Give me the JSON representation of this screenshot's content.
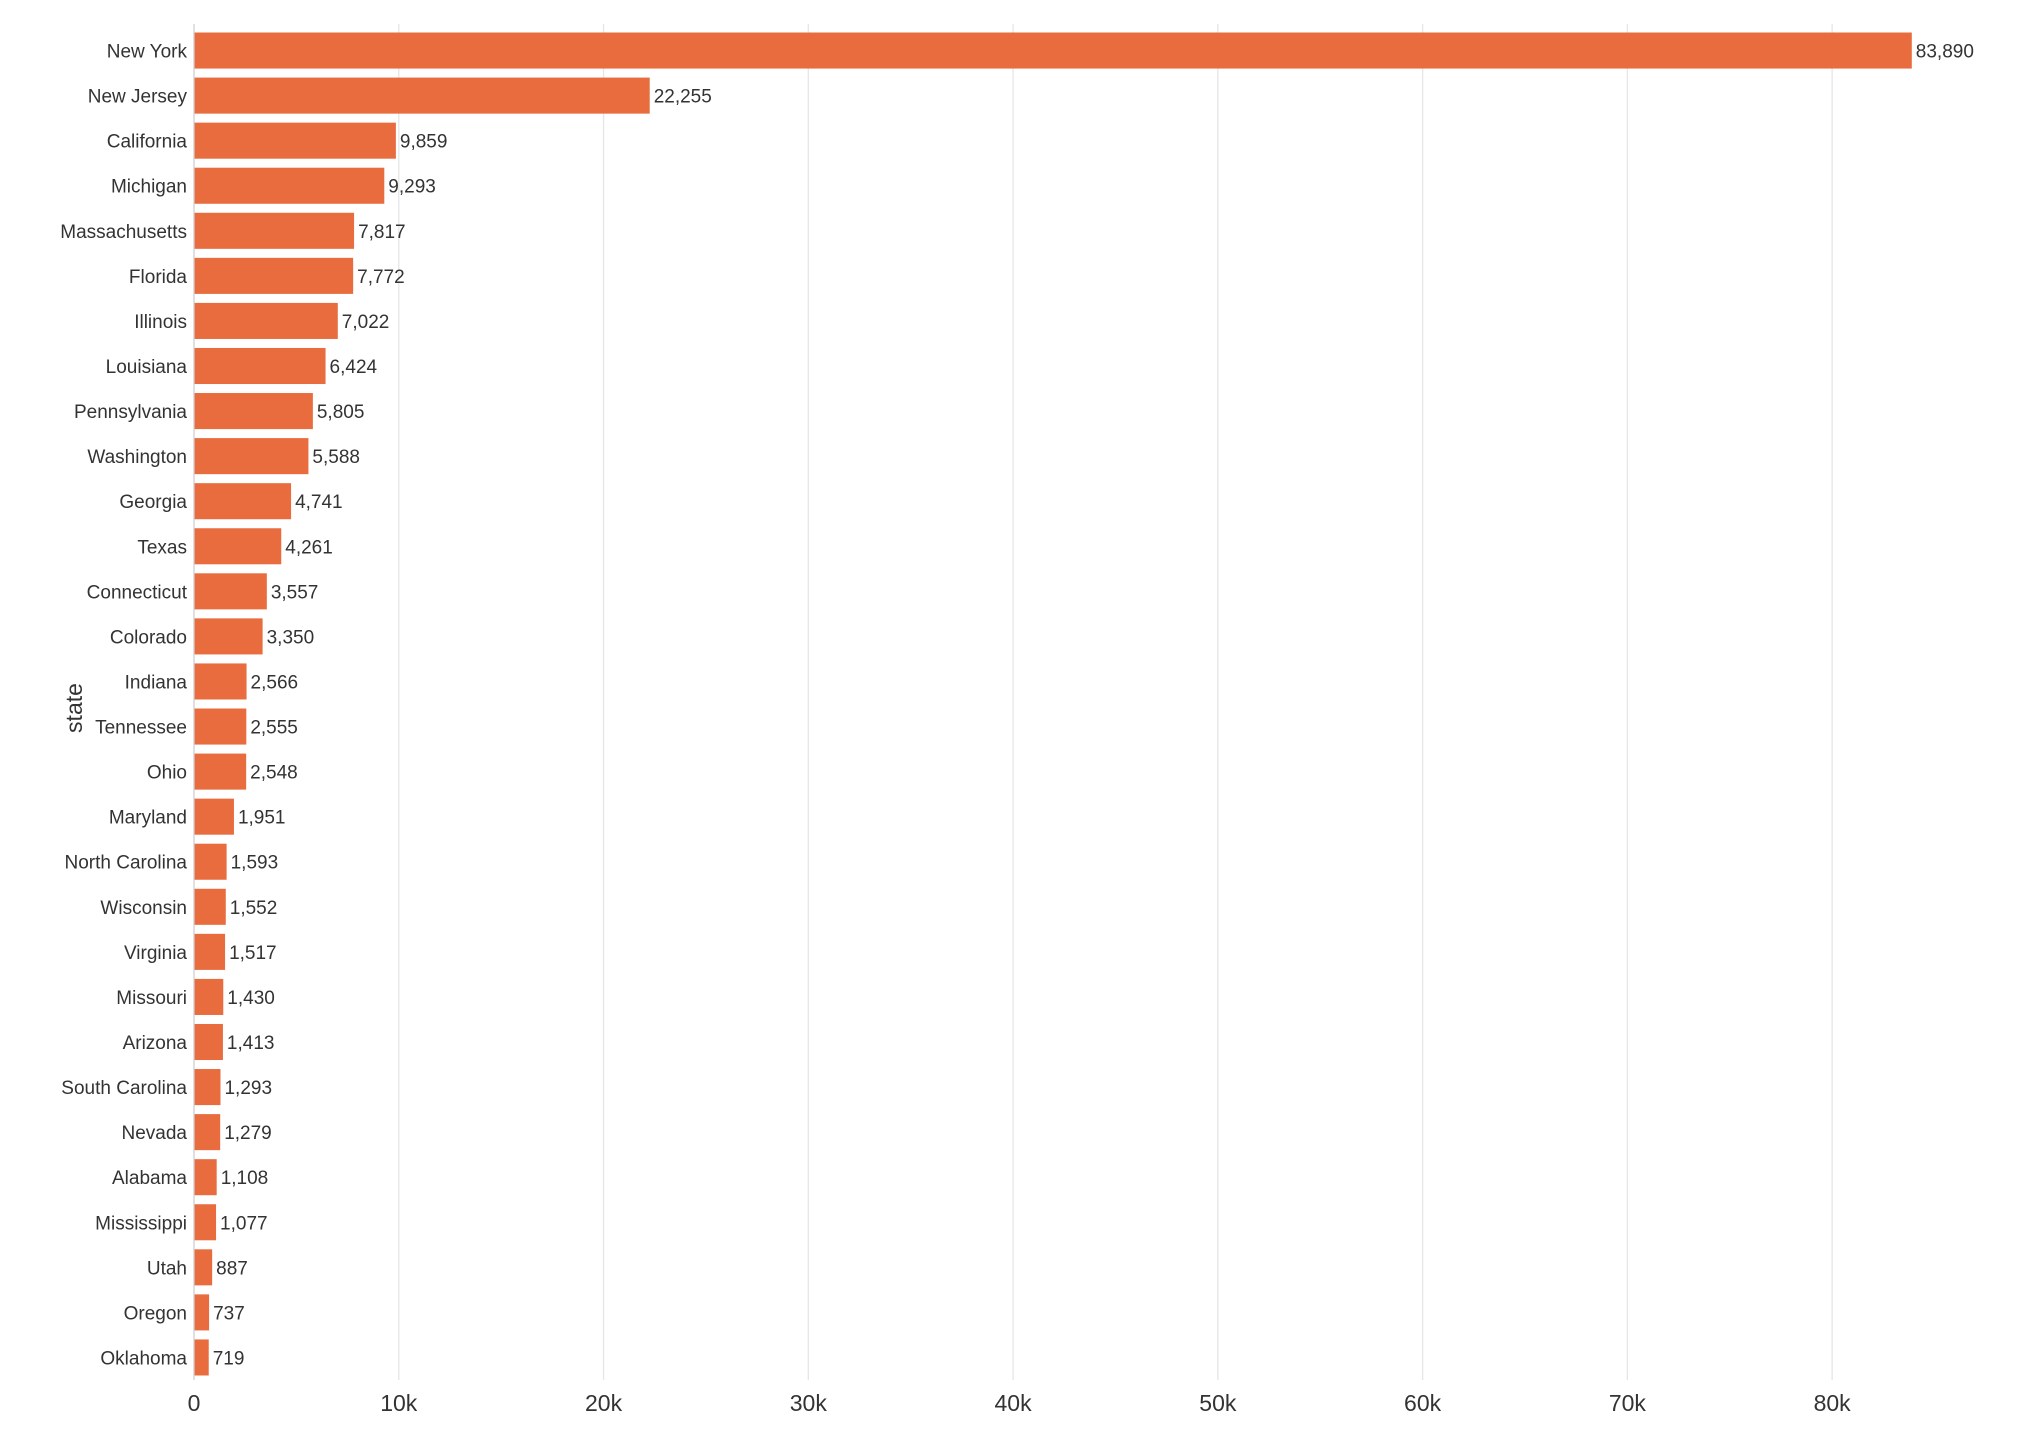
{
  "chart_data": {
    "type": "bar",
    "orientation": "horizontal",
    "title": "",
    "xlabel": "",
    "ylabel": "state",
    "xlim": [
      0,
      86000
    ],
    "xticks": [
      0,
      10000,
      20000,
      30000,
      40000,
      50000,
      60000,
      70000,
      80000
    ],
    "xtick_labels": [
      "0",
      "10k",
      "20k",
      "30k",
      "40k",
      "50k",
      "60k",
      "70k",
      "80k"
    ],
    "grid": true,
    "bar_color": "#e86c3d",
    "categories": [
      "New York",
      "New Jersey",
      "California",
      "Michigan",
      "Massachusetts",
      "Florida",
      "Illinois",
      "Louisiana",
      "Pennsylvania",
      "Washington",
      "Georgia",
      "Texas",
      "Connecticut",
      "Colorado",
      "Indiana",
      "Tennessee",
      "Ohio",
      "Maryland",
      "North Carolina",
      "Wisconsin",
      "Virginia",
      "Missouri",
      "Arizona",
      "South Carolina",
      "Nevada",
      "Alabama",
      "Mississippi",
      "Utah",
      "Oregon",
      "Oklahoma"
    ],
    "values": [
      83890,
      22255,
      9859,
      9293,
      7817,
      7772,
      7022,
      6424,
      5805,
      5588,
      4741,
      4261,
      3557,
      3350,
      2566,
      2555,
      2548,
      1951,
      1593,
      1552,
      1517,
      1430,
      1413,
      1293,
      1279,
      1108,
      1077,
      887,
      737,
      719
    ],
    "value_labels": [
      "83,890",
      "22,255",
      "9,859",
      "9,293",
      "7,817",
      "7,772",
      "7,022",
      "6,424",
      "5,805",
      "5,588",
      "4,741",
      "4,261",
      "3,557",
      "3,350",
      "2,566",
      "2,555",
      "2,548",
      "1,951",
      "1,593",
      "1,552",
      "1,517",
      "1,430",
      "1,413",
      "1,293",
      "1,279",
      "1,108",
      "1,077",
      "887",
      "737",
      "719"
    ]
  }
}
